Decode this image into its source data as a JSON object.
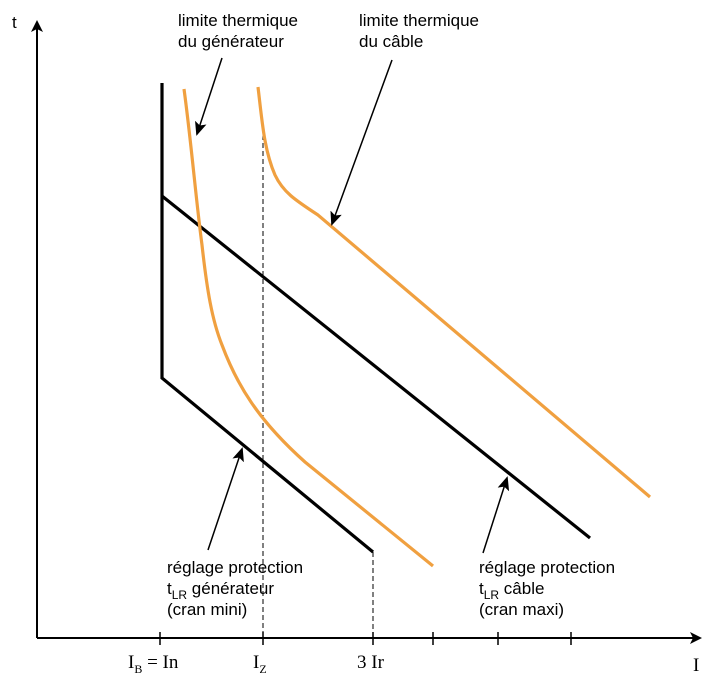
{
  "axes": {
    "y_label": "t",
    "x_label": "I",
    "x_ticks": {
      "ib": "I",
      "ib_sub": "B",
      "ib_suffix": " = In",
      "iz": "I",
      "iz_sub": "Z",
      "three_ir": "3 Ir"
    }
  },
  "annotations": {
    "gen_thermal_line1": "limite thermique",
    "gen_thermal_line2": "du générateur",
    "cable_thermal_line1": "limite thermique",
    "cable_thermal_line2": "du câble",
    "gen_setting_line1": "réglage protection",
    "gen_setting_t": "t",
    "gen_setting_sub": "LR",
    "gen_setting_rest": " générateur",
    "gen_setting_line3": "(cran mini)",
    "cable_setting_line1": "réglage protection",
    "cable_setting_t": "t",
    "cable_setting_sub": "LR",
    "cable_setting_rest": " câble",
    "cable_setting_line3": "(cran maxi)"
  },
  "colors": {
    "thermal_curve": "#F0A040",
    "protection_curve": "#000000"
  }
}
